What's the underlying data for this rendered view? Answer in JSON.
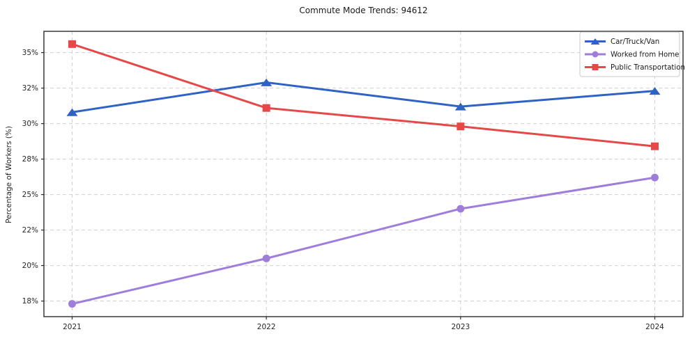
{
  "figure": {
    "title": "Commute Mode Trends: 94612"
  },
  "chart_data": {
    "type": "line",
    "title": "Commute Mode Trends: 94612",
    "xlabel": "",
    "ylabel": "Percentage of Workers (%)",
    "x_categories": [
      "2021",
      "2022",
      "2023",
      "2024"
    ],
    "series": [
      {
        "name": "Car/Truck/Van",
        "marker": "triangle",
        "color": "#2e62c4",
        "values": [
          30.8,
          32.9,
          31.2,
          32.3
        ]
      },
      {
        "name": "Worked from Home",
        "marker": "circle",
        "color": "#9f7ddb",
        "values": [
          17.3,
          20.5,
          24.0,
          26.2
        ]
      },
      {
        "name": "Public Transportation",
        "marker": "square",
        "color": "#e64848",
        "values": [
          35.6,
          31.1,
          29.8,
          28.4
        ]
      }
    ],
    "y_ticks": [
      {
        "value": 17.5,
        "label": "18%"
      },
      {
        "value": 20.0,
        "label": "20%"
      },
      {
        "value": 22.5,
        "label": "22%"
      },
      {
        "value": 25.0,
        "label": "25%"
      },
      {
        "value": 27.5,
        "label": "28%"
      },
      {
        "value": 30.0,
        "label": "30%"
      },
      {
        "value": 32.5,
        "label": "32%"
      },
      {
        "value": 35.0,
        "label": "35%"
      }
    ],
    "ylim": [
      16.4,
      36.5
    ],
    "grid": "dashed",
    "legend_position": "top-right"
  },
  "colors": {
    "background": "#ffffff",
    "grid": "#cfcfcf",
    "spine": "#2b2b2b",
    "tick_label": "#262626",
    "legend_border": "#c9c9c9",
    "legend_background": "#ffffff"
  }
}
